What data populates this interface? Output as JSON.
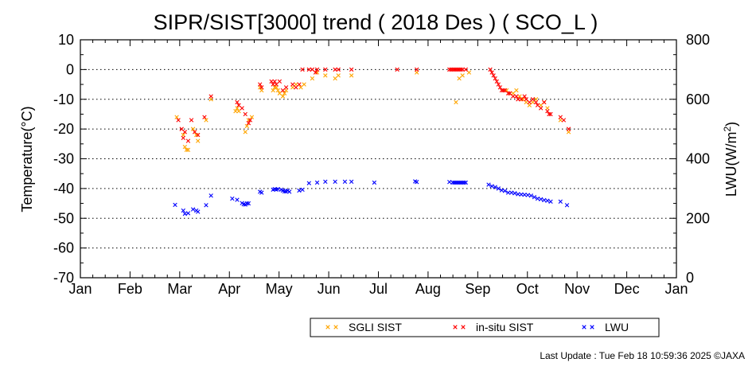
{
  "chart_data": {
    "type": "scatter",
    "title": "SIPR/SIST[3000] trend ( 2018 Des ) ( SCO_L )",
    "ylabel": "Temperature(°C)",
    "y2label_main": "LWU(W/m",
    "y2label_sup": "2",
    "y2label_end": ")",
    "ylim": [
      -70,
      10
    ],
    "y2lim": [
      0,
      800
    ],
    "yticks": [
      "10",
      "0",
      "-10",
      "-20",
      "-30",
      "-40",
      "-50",
      "-60",
      "-70"
    ],
    "y2ticks": [
      "800",
      "600",
      "400",
      "200",
      "0"
    ],
    "months": [
      "Jan",
      "Feb",
      "Mar",
      "Apr",
      "May",
      "Jun",
      "Jul",
      "Aug",
      "Sep",
      "Oct",
      "Nov",
      "Dec",
      "Jan"
    ],
    "grid": "dotted horizontal every 10 °C",
    "legend_placement": "bottom",
    "series": [
      {
        "name": "SGLI SIST",
        "color": "#ffa500",
        "axis": "left",
        "points": [
          [
            59,
            -16
          ],
          [
            63,
            -22
          ],
          [
            64,
            -26
          ],
          [
            65,
            -27
          ],
          [
            66,
            -27
          ],
          [
            69,
            -20
          ],
          [
            71,
            -22
          ],
          [
            72,
            -24
          ],
          [
            77,
            -17
          ],
          [
            80,
            -10
          ],
          [
            95,
            -14
          ],
          [
            96,
            -13
          ],
          [
            97,
            -14
          ],
          [
            101,
            -21
          ],
          [
            102,
            -19
          ],
          [
            103,
            -17
          ],
          [
            105,
            -16
          ],
          [
            110,
            -6
          ],
          [
            111,
            -7
          ],
          [
            118,
            -7
          ],
          [
            119,
            -6
          ],
          [
            120,
            -6
          ],
          [
            121,
            -7
          ],
          [
            122,
            -8
          ],
          [
            124,
            -9
          ],
          [
            125,
            -8
          ],
          [
            126,
            -7
          ],
          [
            130,
            -6
          ],
          [
            132,
            -5
          ],
          [
            135,
            -6
          ],
          [
            137,
            -5
          ],
          [
            142,
            -3
          ],
          [
            145,
            -1
          ],
          [
            150,
            -2
          ],
          [
            156,
            -3
          ],
          [
            158,
            -2
          ],
          [
            166,
            -2
          ],
          [
            206,
            -1
          ],
          [
            230,
            -11
          ],
          [
            232,
            -3
          ],
          [
            234,
            -2
          ],
          [
            238,
            -1
          ],
          [
            261,
            -7
          ],
          [
            263,
            -8
          ],
          [
            265,
            -8
          ],
          [
            267,
            -7
          ],
          [
            269,
            -9
          ],
          [
            271,
            -10
          ],
          [
            273,
            -11
          ],
          [
            275,
            -12
          ],
          [
            277,
            -11
          ],
          [
            279,
            -10
          ],
          [
            282,
            -12
          ],
          [
            284,
            -11
          ],
          [
            286,
            -13
          ],
          [
            294,
            -17
          ],
          [
            299,
            -21
          ]
        ]
      },
      {
        "name": "in-situ SIST",
        "color": "#ff0000",
        "axis": "left",
        "points": [
          [
            60,
            -17
          ],
          [
            62,
            -20
          ],
          [
            63,
            -23
          ],
          [
            64,
            -21
          ],
          [
            66,
            -24
          ],
          [
            68,
            -17
          ],
          [
            70,
            -21
          ],
          [
            72,
            -22
          ],
          [
            76,
            -16
          ],
          [
            80,
            -9
          ],
          [
            96,
            -11
          ],
          [
            97,
            -12
          ],
          [
            99,
            -13
          ],
          [
            101,
            -15
          ],
          [
            103,
            -18
          ],
          [
            104,
            -17
          ],
          [
            110,
            -5
          ],
          [
            111,
            -6
          ],
          [
            117,
            -4
          ],
          [
            118,
            -5
          ],
          [
            119,
            -4
          ],
          [
            120,
            -5
          ],
          [
            122,
            -4
          ],
          [
            124,
            -7
          ],
          [
            126,
            -6
          ],
          [
            130,
            -5
          ],
          [
            132,
            -6
          ],
          [
            134,
            -5
          ],
          [
            136,
            0
          ],
          [
            140,
            0
          ],
          [
            142,
            0
          ],
          [
            144,
            -1
          ],
          [
            145,
            0
          ],
          [
            150,
            0
          ],
          [
            156,
            0
          ],
          [
            158,
            0
          ],
          [
            166,
            0
          ],
          [
            194,
            0
          ],
          [
            206,
            0
          ],
          [
            226,
            0
          ],
          [
            227,
            0
          ],
          [
            228,
            0
          ],
          [
            229,
            0
          ],
          [
            230,
            0
          ],
          [
            231,
            0
          ],
          [
            232,
            0
          ],
          [
            233,
            0
          ],
          [
            234,
            0
          ],
          [
            236,
            0
          ],
          [
            251,
            0
          ],
          [
            252,
            -1
          ],
          [
            253,
            -2
          ],
          [
            254,
            -3
          ],
          [
            255,
            -4
          ],
          [
            256,
            -5
          ],
          [
            257,
            -6
          ],
          [
            258,
            -7
          ],
          [
            259,
            -7
          ],
          [
            260,
            -7
          ],
          [
            262,
            -8
          ],
          [
            263,
            -8
          ],
          [
            265,
            -9
          ],
          [
            267,
            -9
          ],
          [
            268,
            -10
          ],
          [
            270,
            -10
          ],
          [
            272,
            -9
          ],
          [
            273,
            -10
          ],
          [
            275,
            -11
          ],
          [
            277,
            -10
          ],
          [
            279,
            -11
          ],
          [
            280,
            -12
          ],
          [
            282,
            -13
          ],
          [
            284,
            -11
          ],
          [
            286,
            -14
          ],
          [
            287,
            -15
          ],
          [
            288,
            -15
          ],
          [
            294,
            -16
          ],
          [
            296,
            -17
          ],
          [
            299,
            -20
          ]
        ]
      },
      {
        "name": "LWU",
        "color": "#0000ff",
        "axis": "right",
        "points": [
          [
            58,
            245
          ],
          [
            63,
            226
          ],
          [
            64,
            215
          ],
          [
            66,
            217
          ],
          [
            69,
            230
          ],
          [
            71,
            226
          ],
          [
            72,
            222
          ],
          [
            77,
            244
          ],
          [
            80,
            276
          ],
          [
            93,
            266
          ],
          [
            96,
            262
          ],
          [
            99,
            251
          ],
          [
            100,
            247
          ],
          [
            101,
            246
          ],
          [
            102,
            250
          ],
          [
            103,
            250
          ],
          [
            110,
            289
          ],
          [
            111,
            286
          ],
          [
            118,
            296
          ],
          [
            119,
            298
          ],
          [
            120,
            296
          ],
          [
            121,
            298
          ],
          [
            123,
            296
          ],
          [
            124,
            293
          ],
          [
            125,
            290
          ],
          [
            126,
            290
          ],
          [
            127,
            293
          ],
          [
            128,
            289
          ],
          [
            134,
            293
          ],
          [
            136,
            296
          ],
          [
            140,
            318
          ],
          [
            145,
            320
          ],
          [
            150,
            323
          ],
          [
            156,
            323
          ],
          [
            162,
            323
          ],
          [
            166,
            323
          ],
          [
            180,
            320
          ],
          [
            205,
            324
          ],
          [
            206,
            322
          ],
          [
            226,
            322
          ],
          [
            228,
            320
          ],
          [
            229,
            320
          ],
          [
            230,
            320
          ],
          [
            231,
            320
          ],
          [
            232,
            320
          ],
          [
            233,
            320
          ],
          [
            234,
            320
          ],
          [
            235,
            320
          ],
          [
            236,
            320
          ],
          [
            250,
            313
          ],
          [
            252,
            308
          ],
          [
            254,
            305
          ],
          [
            256,
            300
          ],
          [
            258,
            294
          ],
          [
            260,
            292
          ],
          [
            262,
            286
          ],
          [
            264,
            286
          ],
          [
            266,
            284
          ],
          [
            268,
            281
          ],
          [
            270,
            280
          ],
          [
            272,
            279
          ],
          [
            274,
            278
          ],
          [
            276,
            276
          ],
          [
            278,
            271
          ],
          [
            280,
            266
          ],
          [
            282,
            264
          ],
          [
            284,
            261
          ],
          [
            286,
            259
          ],
          [
            288,
            256
          ],
          [
            294,
            256
          ],
          [
            298,
            244
          ]
        ]
      }
    ]
  },
  "footer": {
    "last_update": "Last Update : Tue Feb 18 10:59:36 2025  ©JAXA"
  }
}
